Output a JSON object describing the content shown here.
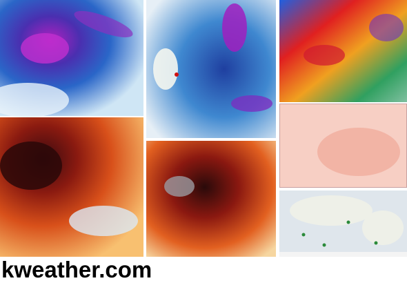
{
  "footer": {
    "brand": "kweather.com"
  }
}
